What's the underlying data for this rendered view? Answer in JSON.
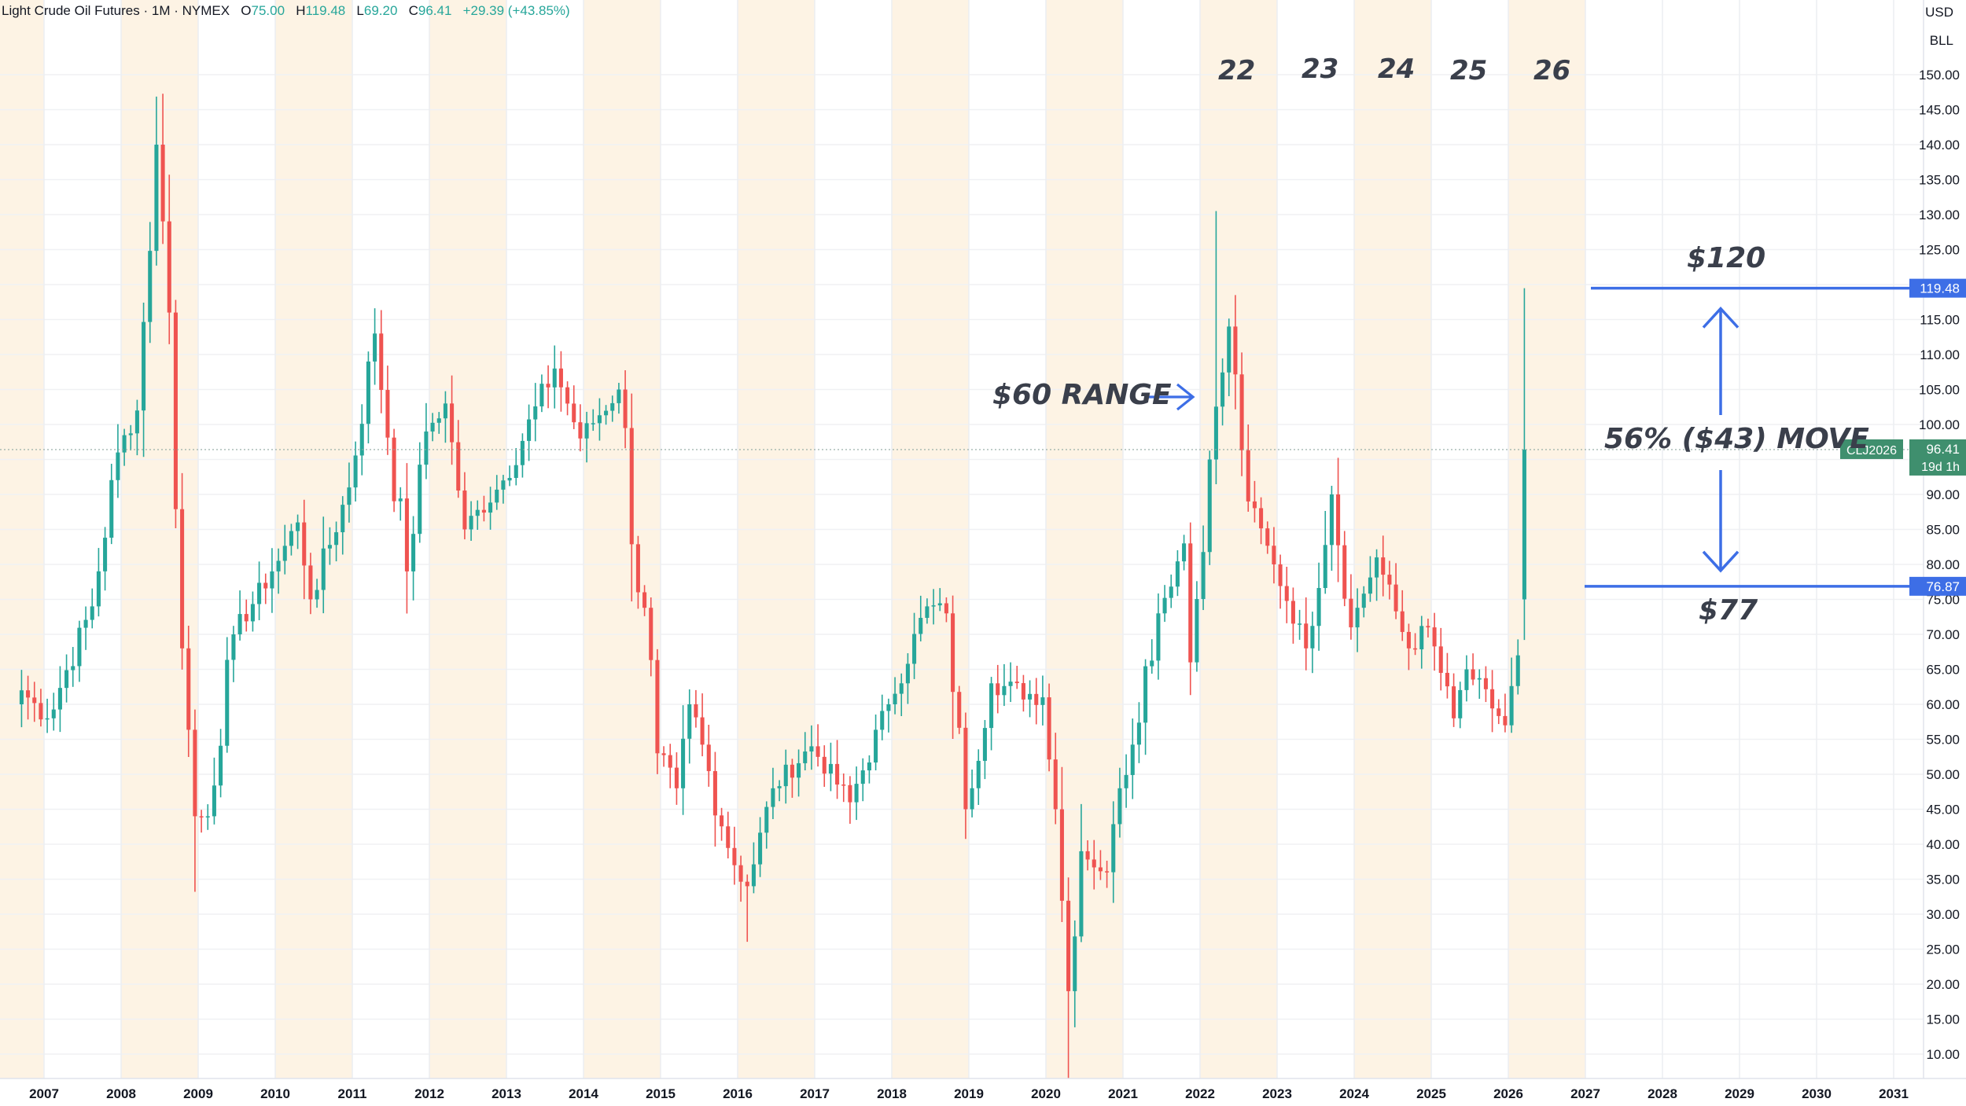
{
  "header": {
    "symbol": "Light Crude Oil Futures",
    "interval": "1M",
    "exchange": "NYMEX",
    "o_label": "O",
    "o_value": "75.00",
    "h_label": "H",
    "h_value": "119.48",
    "l_label": "L",
    "l_value": "69.20",
    "c_label": "C",
    "c_value": "96.41",
    "change": "+29.39 (+43.85%)"
  },
  "price_scale": {
    "currency": "USD",
    "unit": "BLL"
  },
  "colors": {
    "up": "#26a69a",
    "down": "#ef5350",
    "shade": "#fdf3e4",
    "line_blue": "#3d6ee6",
    "badge_green": "#3f8f6e",
    "text_dark": "#3a3f4b"
  },
  "annotations": {
    "range_text": "$60 RANGE",
    "move_text": "56% ($43) MOVE",
    "upper_text": "$120",
    "lower_text": "$77",
    "year_22": "22",
    "year_23": "23",
    "year_24": "24",
    "year_25": "25",
    "year_26": "26"
  },
  "badges": {
    "upper": "119.48",
    "lower": "76.87",
    "symbol": "CLJ2026",
    "last": "96.41",
    "countdown": "19d 1h"
  },
  "chart_data": {
    "type": "candlestick",
    "title": "Light Crude Oil Futures · 1M · NYMEX",
    "xlabel": "",
    "ylabel": "",
    "ylim": [
      5,
      157.5
    ],
    "y_ticks": [
      "10.00",
      "15.00",
      "20.00",
      "25.00",
      "30.00",
      "35.00",
      "40.00",
      "45.00",
      "50.00",
      "55.00",
      "60.00",
      "65.00",
      "70.00",
      "75.00",
      "80.00",
      "85.00",
      "90.00",
      "95.00",
      "100.00",
      "105.00",
      "110.00",
      "115.00",
      "120.00",
      "125.00",
      "130.00",
      "135.00",
      "140.00",
      "145.00",
      "150.00"
    ],
    "x_ticks": [
      "2007",
      "2008",
      "2009",
      "2010",
      "2011",
      "2012",
      "2013",
      "2014",
      "2015",
      "2016",
      "2017",
      "2018",
      "2019",
      "2020",
      "2021",
      "2022",
      "2023",
      "2024",
      "2025",
      "2026",
      "2027",
      "2028",
      "2029",
      "2030",
      "2031"
    ],
    "horizontal_lines": [
      119.48,
      76.87
    ],
    "last_price": 96.41,
    "shaded_years": [
      2008,
      2010,
      2012,
      2014,
      2016,
      2018,
      2020,
      2022,
      2024,
      2026
    ],
    "keypoints": [
      {
        "t": "2006-09",
        "c": 62
      },
      {
        "t": "2007-01",
        "c": 58
      },
      {
        "t": "2007-08",
        "c": 74
      },
      {
        "t": "2007-12",
        "c": 96
      },
      {
        "t": "2008-03",
        "c": 102
      },
      {
        "t": "2008-06",
        "c": 140
      },
      {
        "t": "2008-08",
        "c": 116
      },
      {
        "t": "2008-10",
        "c": 68
      },
      {
        "t": "2008-12",
        "c": 44
      },
      {
        "t": "2009-02",
        "c": 44
      },
      {
        "t": "2009-06",
        "c": 70
      },
      {
        "t": "2009-12",
        "c": 79
      },
      {
        "t": "2010-04",
        "c": 86
      },
      {
        "t": "2010-06",
        "c": 75
      },
      {
        "t": "2010-12",
        "c": 91
      },
      {
        "t": "2011-04",
        "c": 113
      },
      {
        "t": "2011-09",
        "c": 79
      },
      {
        "t": "2011-12",
        "c": 99
      },
      {
        "t": "2012-03",
        "c": 103
      },
      {
        "t": "2012-06",
        "c": 85
      },
      {
        "t": "2012-12",
        "c": 92
      },
      {
        "t": "2013-08",
        "c": 108
      },
      {
        "t": "2013-12",
        "c": 98
      },
      {
        "t": "2014-06",
        "c": 105
      },
      {
        "t": "2014-12",
        "c": 53
      },
      {
        "t": "2015-03",
        "c": 48
      },
      {
        "t": "2015-05",
        "c": 60
      },
      {
        "t": "2015-12",
        "c": 37
      },
      {
        "t": "2016-02",
        "c": 34
      },
      {
        "t": "2016-06",
        "c": 48
      },
      {
        "t": "2016-12",
        "c": 54
      },
      {
        "t": "2017-06",
        "c": 46
      },
      {
        "t": "2017-12",
        "c": 60
      },
      {
        "t": "2018-06",
        "c": 74
      },
      {
        "t": "2018-09",
        "c": 73
      },
      {
        "t": "2018-12",
        "c": 45
      },
      {
        "t": "2019-04",
        "c": 63
      },
      {
        "t": "2019-12",
        "c": 61
      },
      {
        "t": "2020-02",
        "c": 45
      },
      {
        "t": "2020-04",
        "c": 19
      },
      {
        "t": "2020-06",
        "c": 39
      },
      {
        "t": "2020-10",
        "c": 36
      },
      {
        "t": "2020-12",
        "c": 48
      },
      {
        "t": "2021-06",
        "c": 73
      },
      {
        "t": "2021-10",
        "c": 83
      },
      {
        "t": "2021-11",
        "c": 66
      },
      {
        "t": "2022-02",
        "c": 95
      },
      {
        "t": "2022-05",
        "c": 114
      },
      {
        "t": "2022-08",
        "c": 89
      },
      {
        "t": "2022-12",
        "c": 80
      },
      {
        "t": "2023-05",
        "c": 68
      },
      {
        "t": "2023-09",
        "c": 90
      },
      {
        "t": "2023-12",
        "c": 71
      },
      {
        "t": "2024-04",
        "c": 81
      },
      {
        "t": "2024-09",
        "c": 68
      },
      {
        "t": "2024-12",
        "c": 71
      },
      {
        "t": "2025-04",
        "c": 58
      },
      {
        "t": "2025-06",
        "c": 65
      },
      {
        "t": "2025-12",
        "c": 57
      },
      {
        "t": "2026-02",
        "c": 67
      },
      {
        "t": "2026-03",
        "c": 96.41
      }
    ],
    "extremes": [
      {
        "t": "2008-07",
        "h": 147.27
      },
      {
        "t": "2008-12",
        "l": 33.2
      },
      {
        "t": "2016-02",
        "l": 26.05
      },
      {
        "t": "2020-04",
        "l": 6.5
      },
      {
        "t": "2022-03",
        "h": 130.5
      },
      {
        "t": "2026-03",
        "o": 75.0,
        "h": 119.48,
        "l": 69.2,
        "c": 96.41
      }
    ]
  }
}
